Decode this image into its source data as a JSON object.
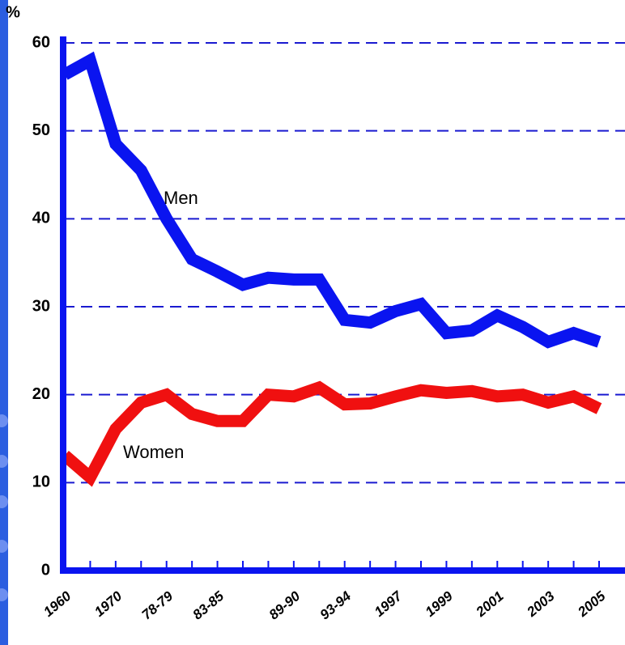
{
  "chart_data": {
    "type": "line",
    "y_label": "%",
    "categories": [
      "1960",
      null,
      "1970",
      null,
      "78-79",
      null,
      "83-85",
      null,
      null,
      "89-90",
      null,
      "93-94",
      null,
      "1997",
      null,
      "1999",
      null,
      "2001",
      null,
      "2003",
      null,
      "2005"
    ],
    "series": [
      {
        "name": "Men",
        "color": "#0a14f0",
        "values": [
          56.4,
          58.0,
          48.5,
          45.5,
          40.0,
          35.4,
          34.0,
          32.5,
          33.3,
          33.1,
          33.1,
          28.5,
          28.2,
          29.5,
          30.3,
          27.0,
          27.3,
          29.0,
          27.7,
          26.0,
          27.0,
          26.0
        ]
      },
      {
        "name": "Women",
        "color": "#f01010",
        "values": [
          13.1,
          10.6,
          16.1,
          19.1,
          20.0,
          17.8,
          17.0,
          17.0,
          20.0,
          19.8,
          20.8,
          18.9,
          19.0,
          19.8,
          20.5,
          20.2,
          20.4,
          19.8,
          20.0,
          19.1,
          19.8,
          18.4
        ]
      }
    ],
    "ylim": [
      0,
      60
    ],
    "yticks": [
      0,
      10,
      20,
      30,
      40,
      50,
      60
    ],
    "grid": true
  }
}
